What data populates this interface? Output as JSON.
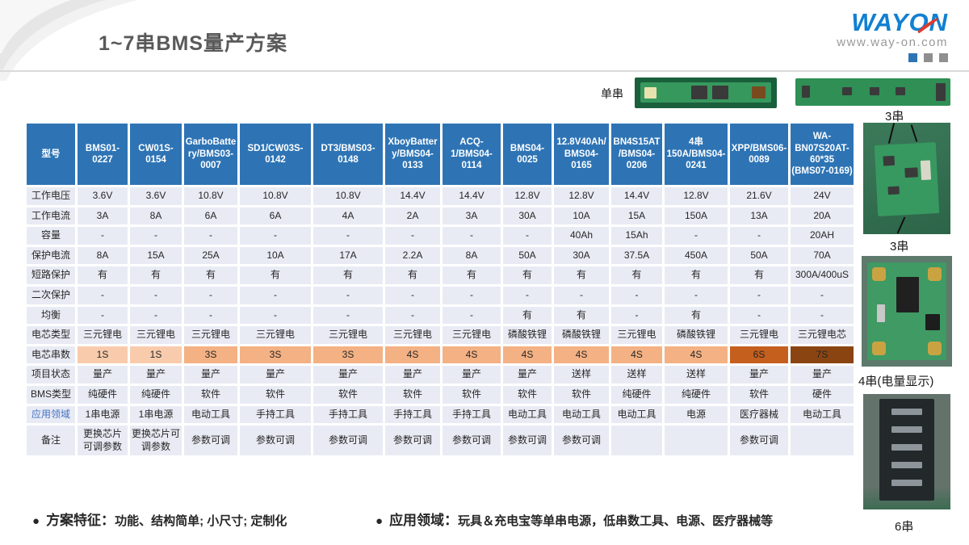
{
  "header": {
    "title": "1~7串BMS量产方案",
    "logo_text": "WAYON",
    "logo_url": "www.way-on.com"
  },
  "photos": {
    "single_label": "单串",
    "strip_label": "3串",
    "side_labels": [
      "3串",
      "4串(电量显示)",
      "6串"
    ]
  },
  "table": {
    "header_bg": "#2e74b5",
    "cell_bg": "#e9ebf4",
    "series_colors": {
      "1S": "#f8cbad",
      "3S": "#f4b183",
      "4S": "#f4b183",
      "6S": "#c55f1e",
      "7S": "#8a4412"
    },
    "columns": [
      "型号",
      "BMS01-0227",
      "CW01S-0154",
      "GarboBattery/BMS03-0007",
      "SD1/CW03S-0142",
      "DT3/BMS03-0148",
      "XboyBattery/BMS04-0133",
      "ACQ-1/BMS04-0114",
      "BMS04-0025",
      "12.8V40Ah/BMS04-0165",
      "BN4S15AT/BMS04-0206",
      "4串150A/BMS04-0241",
      "XPP/BMS06-0089",
      "WA-BN07S20AT-60*35 (BMS07-0169)"
    ],
    "rows": [
      {
        "label": "工作电压",
        "values": [
          "3.6V",
          "3.6V",
          "10.8V",
          "10.8V",
          "10.8V",
          "14.4V",
          "14.4V",
          "12.8V",
          "12.8V",
          "14.4V",
          "12.8V",
          "21.6V",
          "24V"
        ]
      },
      {
        "label": "工作电流",
        "values": [
          "3A",
          "8A",
          "6A",
          "6A",
          "4A",
          "2A",
          "3A",
          "30A",
          "10A",
          "15A",
          "150A",
          "13A",
          "20A"
        ]
      },
      {
        "label": "容量",
        "values": [
          "-",
          "-",
          "-",
          "-",
          "-",
          "-",
          "-",
          "-",
          "40Ah",
          "15Ah",
          "-",
          "-",
          "20AH"
        ]
      },
      {
        "label": "保护电流",
        "values": [
          "8A",
          "15A",
          "25A",
          "10A",
          "17A",
          "2.2A",
          "8A",
          "50A",
          "30A",
          "37.5A",
          "450A",
          "50A",
          "70A"
        ]
      },
      {
        "label": "短路保护",
        "values": [
          "有",
          "有",
          "有",
          "有",
          "有",
          "有",
          "有",
          "有",
          "有",
          "有",
          "有",
          "有",
          "300A/400uS"
        ]
      },
      {
        "label": "二次保护",
        "values": [
          "-",
          "-",
          "-",
          "-",
          "-",
          "-",
          "-",
          "-",
          "-",
          "-",
          "-",
          "-",
          "-"
        ]
      },
      {
        "label": "均衡",
        "values": [
          "-",
          "-",
          "-",
          "-",
          "-",
          "-",
          "-",
          "有",
          "有",
          "-",
          "有",
          "-",
          "-"
        ]
      },
      {
        "label": "电芯类型",
        "values": [
          "三元锂电",
          "三元锂电",
          "三元锂电",
          "三元锂电",
          "三元锂电",
          "三元锂电",
          "三元锂电",
          "磷酸铁锂",
          "磷酸铁锂",
          "三元锂电",
          "磷酸铁锂",
          "三元锂电",
          "三元锂电芯"
        ]
      },
      {
        "label": "电芯串数",
        "highlight": true,
        "values": [
          "1S",
          "1S",
          "3S",
          "3S",
          "3S",
          "4S",
          "4S",
          "4S",
          "4S",
          "4S",
          "4S",
          "6S",
          "7S"
        ]
      },
      {
        "label": "项目状态",
        "values": [
          "量产",
          "量产",
          "量产",
          "量产",
          "量产",
          "量产",
          "量产",
          "量产",
          "送样",
          "送样",
          "送样",
          "量产",
          "量产"
        ]
      },
      {
        "label": "BMS类型",
        "values": [
          "纯硬件",
          "纯硬件",
          "软件",
          "软件",
          "软件",
          "软件",
          "软件",
          "软件",
          "软件",
          "纯硬件",
          "纯硬件",
          "软件",
          "硬件"
        ]
      },
      {
        "label": "应用领域",
        "label_color": "#4472c4",
        "values": [
          "1串电源",
          "1串电源",
          "电动工具",
          "手持工具",
          "手持工具",
          "手持工具",
          "手持工具",
          "电动工具",
          "电动工具",
          "电动工具",
          "电源",
          "医疗器械",
          "电动工具"
        ]
      },
      {
        "label": "备注",
        "values": [
          "更换芯片可调参数",
          "更换芯片可调参数",
          "参数可调",
          "参数可调",
          "参数可调",
          "参数可调",
          "参数可调",
          "参数可调",
          "参数可调",
          "",
          "",
          "参数可调",
          ""
        ]
      }
    ]
  },
  "footer": {
    "bullets": [
      {
        "label": "方案特征：",
        "text": "功能、结构简单; 小尺寸; 定制化"
      },
      {
        "label": "应用领域：",
        "text": "玩具＆充电宝等单串电源，低串数工具、电源、医疗器械等"
      }
    ]
  },
  "colors": {
    "header_blue": "#2e74b5",
    "logo_blue": "#1180d1",
    "logo_red": "#e03a2a",
    "app_row_label_blue": "#4472c4",
    "title_gray": "#595959"
  }
}
